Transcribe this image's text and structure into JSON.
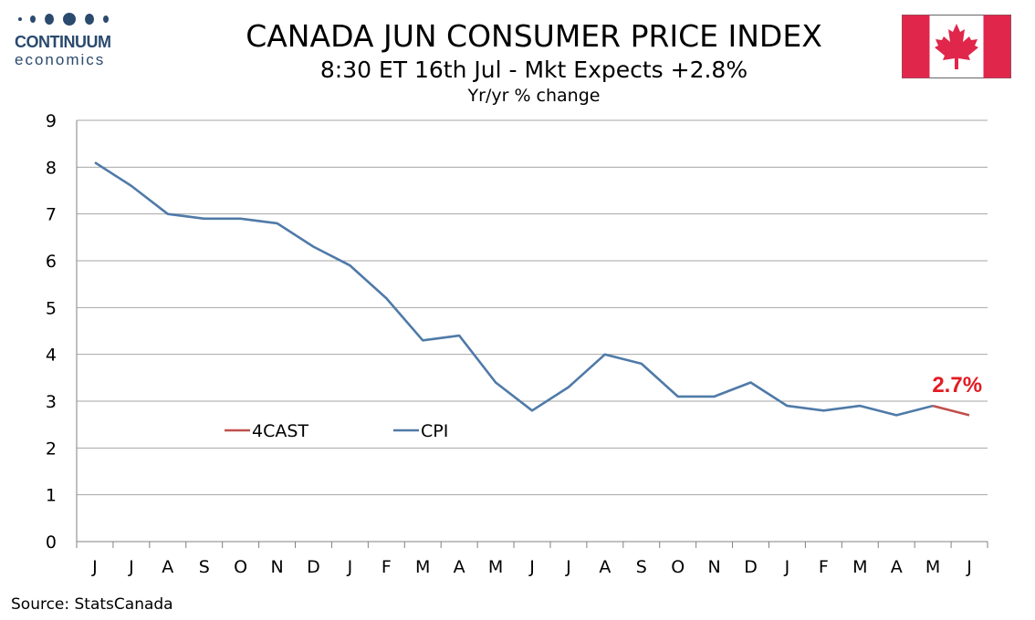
{
  "logo": {
    "word": "CONTINUUM",
    "sub": "economics",
    "color": "#2a4a6e"
  },
  "header": {
    "title": "CANADA JUN CONSUMER PRICE INDEX",
    "subtitle": "8:30 ET 16th Jul - Mkt Expects +2.8%",
    "subsubtitle": "Yr/yr % change"
  },
  "flag": {
    "icon": "canada-flag-icon",
    "red": "#d52b1e"
  },
  "source": "Source: StatsCanada",
  "chart_data": {
    "type": "line",
    "categories": [
      "J",
      "J",
      "A",
      "S",
      "O",
      "N",
      "D",
      "J",
      "F",
      "M",
      "A",
      "M",
      "J",
      "J",
      "A",
      "S",
      "O",
      "N",
      "D",
      "J",
      "F",
      "M",
      "A",
      "M",
      "J"
    ],
    "ylim": [
      0,
      9
    ],
    "yticks": [
      0,
      1,
      2,
      3,
      4,
      5,
      6,
      7,
      8,
      9
    ],
    "grid": true,
    "legend_placement": "bottom-left",
    "series": [
      {
        "name": "CPI",
        "color": "#4f7aa8",
        "values": [
          8.1,
          7.6,
          7.0,
          6.9,
          6.9,
          6.8,
          6.3,
          5.9,
          5.2,
          4.3,
          4.4,
          3.4,
          2.8,
          3.3,
          4.0,
          3.8,
          3.1,
          3.1,
          3.4,
          2.9,
          2.8,
          2.9,
          2.7,
          2.9,
          null
        ]
      },
      {
        "name": "4CAST",
        "color": "#c0504d",
        "values": [
          null,
          null,
          null,
          null,
          null,
          null,
          null,
          null,
          null,
          null,
          null,
          null,
          null,
          null,
          null,
          null,
          null,
          null,
          null,
          null,
          null,
          null,
          null,
          2.9,
          2.7
        ]
      }
    ],
    "annotation": {
      "text": "2.7%",
      "color": "#e31b23",
      "index": 24
    }
  }
}
